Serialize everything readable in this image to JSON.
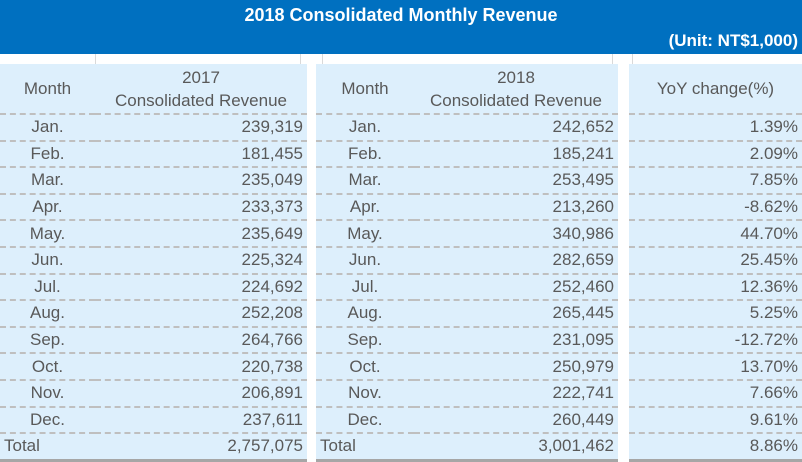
{
  "header": {
    "title": "2018 Consolidated Monthly Revenue",
    "unit": "(Unit: NT$1,000)"
  },
  "table2017": {
    "headers": {
      "month": "Month",
      "year": "2017",
      "revenue": "Consolidated Revenue"
    },
    "rows": [
      {
        "month": "Jan.",
        "value": "239,319"
      },
      {
        "month": "Feb.",
        "value": "181,455"
      },
      {
        "month": "Mar.",
        "value": "235,049"
      },
      {
        "month": "Apr.",
        "value": "233,373"
      },
      {
        "month": "May.",
        "value": "235,649"
      },
      {
        "month": "Jun.",
        "value": "225,324"
      },
      {
        "month": "Jul.",
        "value": "224,692"
      },
      {
        "month": "Aug.",
        "value": "252,208"
      },
      {
        "month": "Sep.",
        "value": "264,766"
      },
      {
        "month": "Oct.",
        "value": "220,738"
      },
      {
        "month": "Nov.",
        "value": "206,891"
      },
      {
        "month": "Dec.",
        "value": "237,611"
      }
    ],
    "total": {
      "label": "Total",
      "value": "2,757,075"
    }
  },
  "table2018": {
    "headers": {
      "month": "Month",
      "year": "2018",
      "revenue": "Consolidated Revenue"
    },
    "rows": [
      {
        "month": "Jan.",
        "value": "242,652"
      },
      {
        "month": "Feb.",
        "value": "185,241"
      },
      {
        "month": "Mar.",
        "value": "253,495"
      },
      {
        "month": "Apr.",
        "value": "213,260"
      },
      {
        "month": "May.",
        "value": "340,986"
      },
      {
        "month": "Jun.",
        "value": "282,659"
      },
      {
        "month": "Jul.",
        "value": "252,460"
      },
      {
        "month": "Aug.",
        "value": "265,445"
      },
      {
        "month": "Sep.",
        "value": "231,095"
      },
      {
        "month": "Oct.",
        "value": "250,979"
      },
      {
        "month": "Nov.",
        "value": "222,741"
      },
      {
        "month": "Dec.",
        "value": "260,449"
      }
    ],
    "total": {
      "label": "Total",
      "value": "3,001,462"
    }
  },
  "yoy": {
    "header": "YoY change(%)",
    "values": [
      "1.39%",
      "2.09%",
      "7.85%",
      "-8.62%",
      "44.70%",
      "25.45%",
      "12.36%",
      "5.25%",
      "-12.72%",
      "13.70%",
      "7.66%",
      "9.61%"
    ],
    "total": "8.86%"
  },
  "colors": {
    "banner": "#0070c0",
    "panel": "#ddeffc",
    "text": "#595959",
    "divider": "#bfbfbf"
  }
}
